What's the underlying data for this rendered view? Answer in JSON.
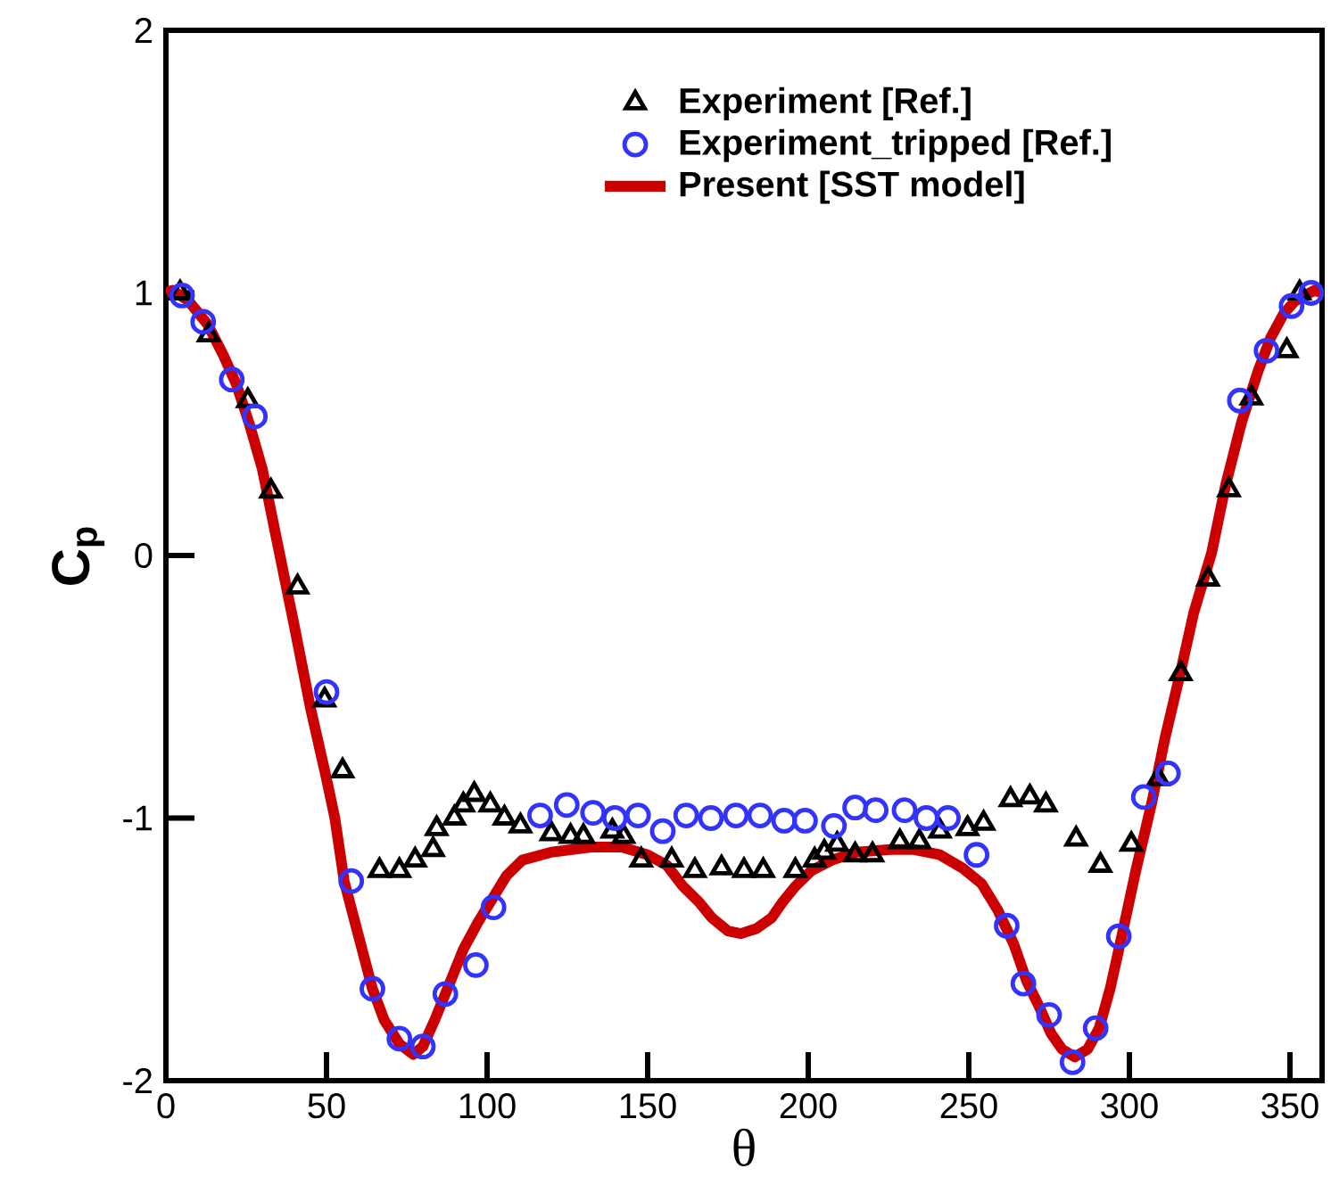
{
  "chart_data": {
    "type": "scatter",
    "xlabel": "θ",
    "ylabel": "C$_{p}$",
    "xlim": [
      0,
      360
    ],
    "ylim": [
      -2,
      2
    ],
    "xticks": [
      0,
      50,
      100,
      150,
      200,
      250,
      300,
      350
    ],
    "yticks": [
      -2,
      -1,
      0,
      1,
      2
    ],
    "grid": false,
    "legend": "top",
    "series": [
      {
        "name": "Experiment [Ref.]",
        "marker": "triangle",
        "color": "#000000",
        "x": [
          4.4,
          13.3,
          25.5,
          32.7,
          41,
          49.4,
          55,
          66.5,
          72.7,
          77.6,
          83.2,
          84.3,
          89.8,
          92.6,
          96,
          101,
          105.4,
          110.4,
          120,
          126,
          130,
          139,
          142.5,
          148,
          157.5,
          164.7,
          173,
          180,
          186,
          196,
          202,
          205,
          209,
          214.6,
          220,
          228.5,
          234.6,
          241,
          249.6,
          254.6,
          263,
          269,
          274,
          283.4,
          291,
          300.6,
          309,
          316,
          324.5,
          331,
          338,
          349,
          353
        ],
        "values": [
          1.0,
          0.84,
          0.59,
          0.245,
          -0.12,
          -0.55,
          -0.82,
          -1.2,
          -1.2,
          -1.16,
          -1.12,
          -1.04,
          -1.0,
          -0.95,
          -0.91,
          -0.95,
          -1.0,
          -1.03,
          -1.06,
          -1.07,
          -1.07,
          -1.05,
          -1.07,
          -1.16,
          -1.16,
          -1.2,
          -1.19,
          -1.2,
          -1.2,
          -1.2,
          -1.16,
          -1.13,
          -1.1,
          -1.14,
          -1.14,
          -1.09,
          -1.09,
          -1.05,
          -1.04,
          -1.02,
          -0.93,
          -0.92,
          -0.95,
          -1.08,
          -1.18,
          -1.1,
          -0.85,
          -0.45,
          -0.09,
          0.25,
          0.6,
          0.78,
          1.0
        ]
      },
      {
        "name": "Experiment_tripped [Ref.]",
        "marker": "circle",
        "color": "#3333ff",
        "x": [
          5,
          11.6,
          20.5,
          27.7,
          50,
          57.7,
          64.3,
          72.7,
          80,
          87,
          96.5,
          102,
          116.5,
          124.8,
          133,
          139.8,
          147,
          154.7,
          162,
          169.7,
          177.5,
          185,
          192.5,
          199,
          208,
          214.6,
          221,
          230,
          236.8,
          243.5,
          252.4,
          261.8,
          267,
          275,
          282.3,
          289.5,
          296.7,
          304.5,
          312,
          334.4,
          342.7,
          350.5,
          356.6
        ],
        "values": [
          0.99,
          0.89,
          0.67,
          0.53,
          -0.52,
          -1.24,
          -1.65,
          -1.84,
          -1.87,
          -1.67,
          -1.56,
          -1.34,
          -0.99,
          -0.95,
          -0.98,
          -1.0,
          -0.99,
          -1.05,
          -0.99,
          -1.0,
          -0.99,
          -0.99,
          -1.01,
          -1.01,
          -1.03,
          -0.96,
          -0.97,
          -0.97,
          -1.0,
          -1.0,
          -1.14,
          -1.41,
          -1.63,
          -1.75,
          -1.93,
          -1.8,
          -1.45,
          -0.92,
          -0.83,
          0.59,
          0.78,
          0.95,
          1.0
        ]
      },
      {
        "name": "Present [SST model]",
        "type": "line",
        "marker": "none",
        "line_style": "solid",
        "color": "#cc0000",
        "x": [
          0,
          2,
          7,
          13,
          18,
          22,
          26,
          30,
          35.5,
          40,
          45,
          50,
          52.6,
          55.5,
          60,
          64.3,
          68,
          72.7,
          77,
          80,
          84,
          87,
          92.6,
          97,
          102,
          106,
          111,
          120,
          133,
          142,
          150,
          156,
          161,
          166,
          170,
          175,
          179,
          184,
          188.6,
          192,
          196,
          201,
          207.4,
          215,
          225.7,
          233,
          241,
          248,
          254,
          259,
          264,
          268,
          272,
          275.6,
          279,
          283,
          287,
          290.6,
          294,
          297.8,
          302,
          307,
          311,
          316,
          320,
          325.6,
          330,
          335,
          340,
          344,
          348,
          351.6,
          357.7,
          360
        ],
        "values": [
          1.0,
          1.01,
          0.97,
          0.88,
          0.76,
          0.65,
          0.5,
          0.33,
          0,
          -0.27,
          -0.58,
          -0.85,
          -1.0,
          -1.24,
          -1.45,
          -1.65,
          -1.77,
          -1.86,
          -1.9,
          -1.87,
          -1.76,
          -1.67,
          -1.5,
          -1.4,
          -1.3,
          -1.22,
          -1.16,
          -1.13,
          -1.11,
          -1.11,
          -1.14,
          -1.18,
          -1.26,
          -1.32,
          -1.38,
          -1.43,
          -1.44,
          -1.42,
          -1.38,
          -1.32,
          -1.26,
          -1.2,
          -1.16,
          -1.13,
          -1.12,
          -1.12,
          -1.14,
          -1.19,
          -1.25,
          -1.35,
          -1.48,
          -1.62,
          -1.72,
          -1.82,
          -1.88,
          -1.91,
          -1.88,
          -1.8,
          -1.65,
          -1.44,
          -1.2,
          -0.94,
          -0.7,
          -0.44,
          -0.22,
          0.01,
          0.27,
          0.51,
          0.7,
          0.83,
          0.92,
          0.97,
          1.01,
          1.0
        ]
      }
    ]
  }
}
